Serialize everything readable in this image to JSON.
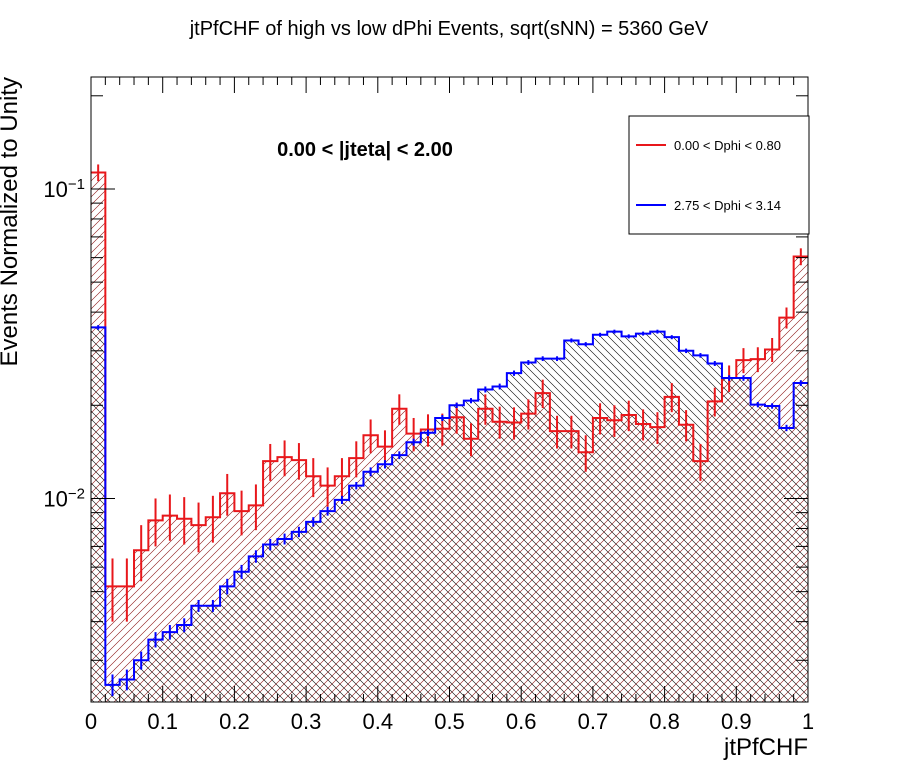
{
  "chart_data": {
    "type": "histogram",
    "title": "jtPfCHF of high vs low dPhi Events, sqrt(sNN) = 5360 GeV",
    "xlabel": "jtPfCHF",
    "ylabel": "Events Normalized to Unity",
    "xlim": [
      0,
      1
    ],
    "ylim": [
      0.0022,
      0.23
    ],
    "yscale": "log",
    "x_ticks": [
      "0",
      "0.1",
      "0.2",
      "0.3",
      "0.4",
      "0.5",
      "0.6",
      "0.7",
      "0.8",
      "0.9",
      "1"
    ],
    "y_tick_labels": [
      {
        "value": 0.1,
        "base": "10",
        "exp": "−1"
      },
      {
        "value": 0.01,
        "base": "10",
        "exp": "−2"
      }
    ],
    "annotation": "0.00 < |jteta| < 2.00",
    "legend_position": "top-right",
    "bins": 50,
    "series": [
      {
        "name": "0.00 < Dphi < 0.80",
        "color": "#e8171b",
        "values": [
          0.113,
          0.0052,
          0.0052,
          0.0068,
          0.0085,
          0.0088,
          0.0086,
          0.0082,
          0.0087,
          0.0104,
          0.0091,
          0.0095,
          0.0132,
          0.0136,
          0.0133,
          0.0118,
          0.011,
          0.0118,
          0.0135,
          0.016,
          0.0147,
          0.0195,
          0.0162,
          0.0167,
          0.0168,
          0.0183,
          0.0156,
          0.0195,
          0.0177,
          0.0176,
          0.0188,
          0.0219,
          0.0165,
          0.0165,
          0.0141,
          0.0182,
          0.0179,
          0.0186,
          0.0174,
          0.017,
          0.0213,
          0.0173,
          0.0132,
          0.0206,
          0.0245,
          0.028,
          0.0282,
          0.0303,
          0.0384,
          0.0605
        ],
        "errors": [
          0.007,
          0.0012,
          0.0012,
          0.0014,
          0.0015,
          0.0015,
          0.0015,
          0.0015,
          0.0015,
          0.0016,
          0.0015,
          0.0016,
          0.0018,
          0.0018,
          0.0018,
          0.0017,
          0.0016,
          0.0017,
          0.0018,
          0.002,
          0.0019,
          0.0022,
          0.002,
          0.002,
          0.002,
          0.0021,
          0.0019,
          0.0022,
          0.0021,
          0.0021,
          0.0021,
          0.0023,
          0.002,
          0.002,
          0.0019,
          0.0021,
          0.0021,
          0.0021,
          0.002,
          0.002,
          0.0023,
          0.002,
          0.0018,
          0.0022,
          0.0024,
          0.0026,
          0.0026,
          0.0027,
          0.003,
          0.0038
        ]
      },
      {
        "name": "2.75 < Dphi < 3.14",
        "color": "#0000ff",
        "values": [
          0.0357,
          0.0025,
          0.0026,
          0.003,
          0.0035,
          0.0037,
          0.0039,
          0.0045,
          0.0045,
          0.0052,
          0.0058,
          0.0065,
          0.0071,
          0.0074,
          0.0078,
          0.0084,
          0.0091,
          0.0099,
          0.011,
          0.0122,
          0.0129,
          0.0138,
          0.0152,
          0.0163,
          0.0182,
          0.02,
          0.0207,
          0.0225,
          0.023,
          0.0254,
          0.0275,
          0.0283,
          0.0283,
          0.0324,
          0.0315,
          0.0338,
          0.0346,
          0.0334,
          0.0341,
          0.0346,
          0.0332,
          0.03,
          0.029,
          0.0273,
          0.0245,
          0.0245,
          0.0201,
          0.0199,
          0.0169,
          0.0236
        ],
        "errors": [
          0.0006,
          0.0002,
          0.0002,
          0.0002,
          0.0002,
          0.0002,
          0.0002,
          0.0002,
          0.0002,
          0.0003,
          0.0003,
          0.0003,
          0.0003,
          0.0003,
          0.0003,
          0.0003,
          0.0003,
          0.0003,
          0.0003,
          0.0004,
          0.0004,
          0.0004,
          0.0004,
          0.0004,
          0.0004,
          0.0004,
          0.0004,
          0.0005,
          0.0005,
          0.0005,
          0.0005,
          0.0005,
          0.0005,
          0.0005,
          0.0005,
          0.0005,
          0.0005,
          0.0005,
          0.0005,
          0.0005,
          0.0005,
          0.0005,
          0.0005,
          0.0005,
          0.0005,
          0.0005,
          0.0004,
          0.0004,
          0.0004,
          0.0005
        ]
      }
    ]
  }
}
